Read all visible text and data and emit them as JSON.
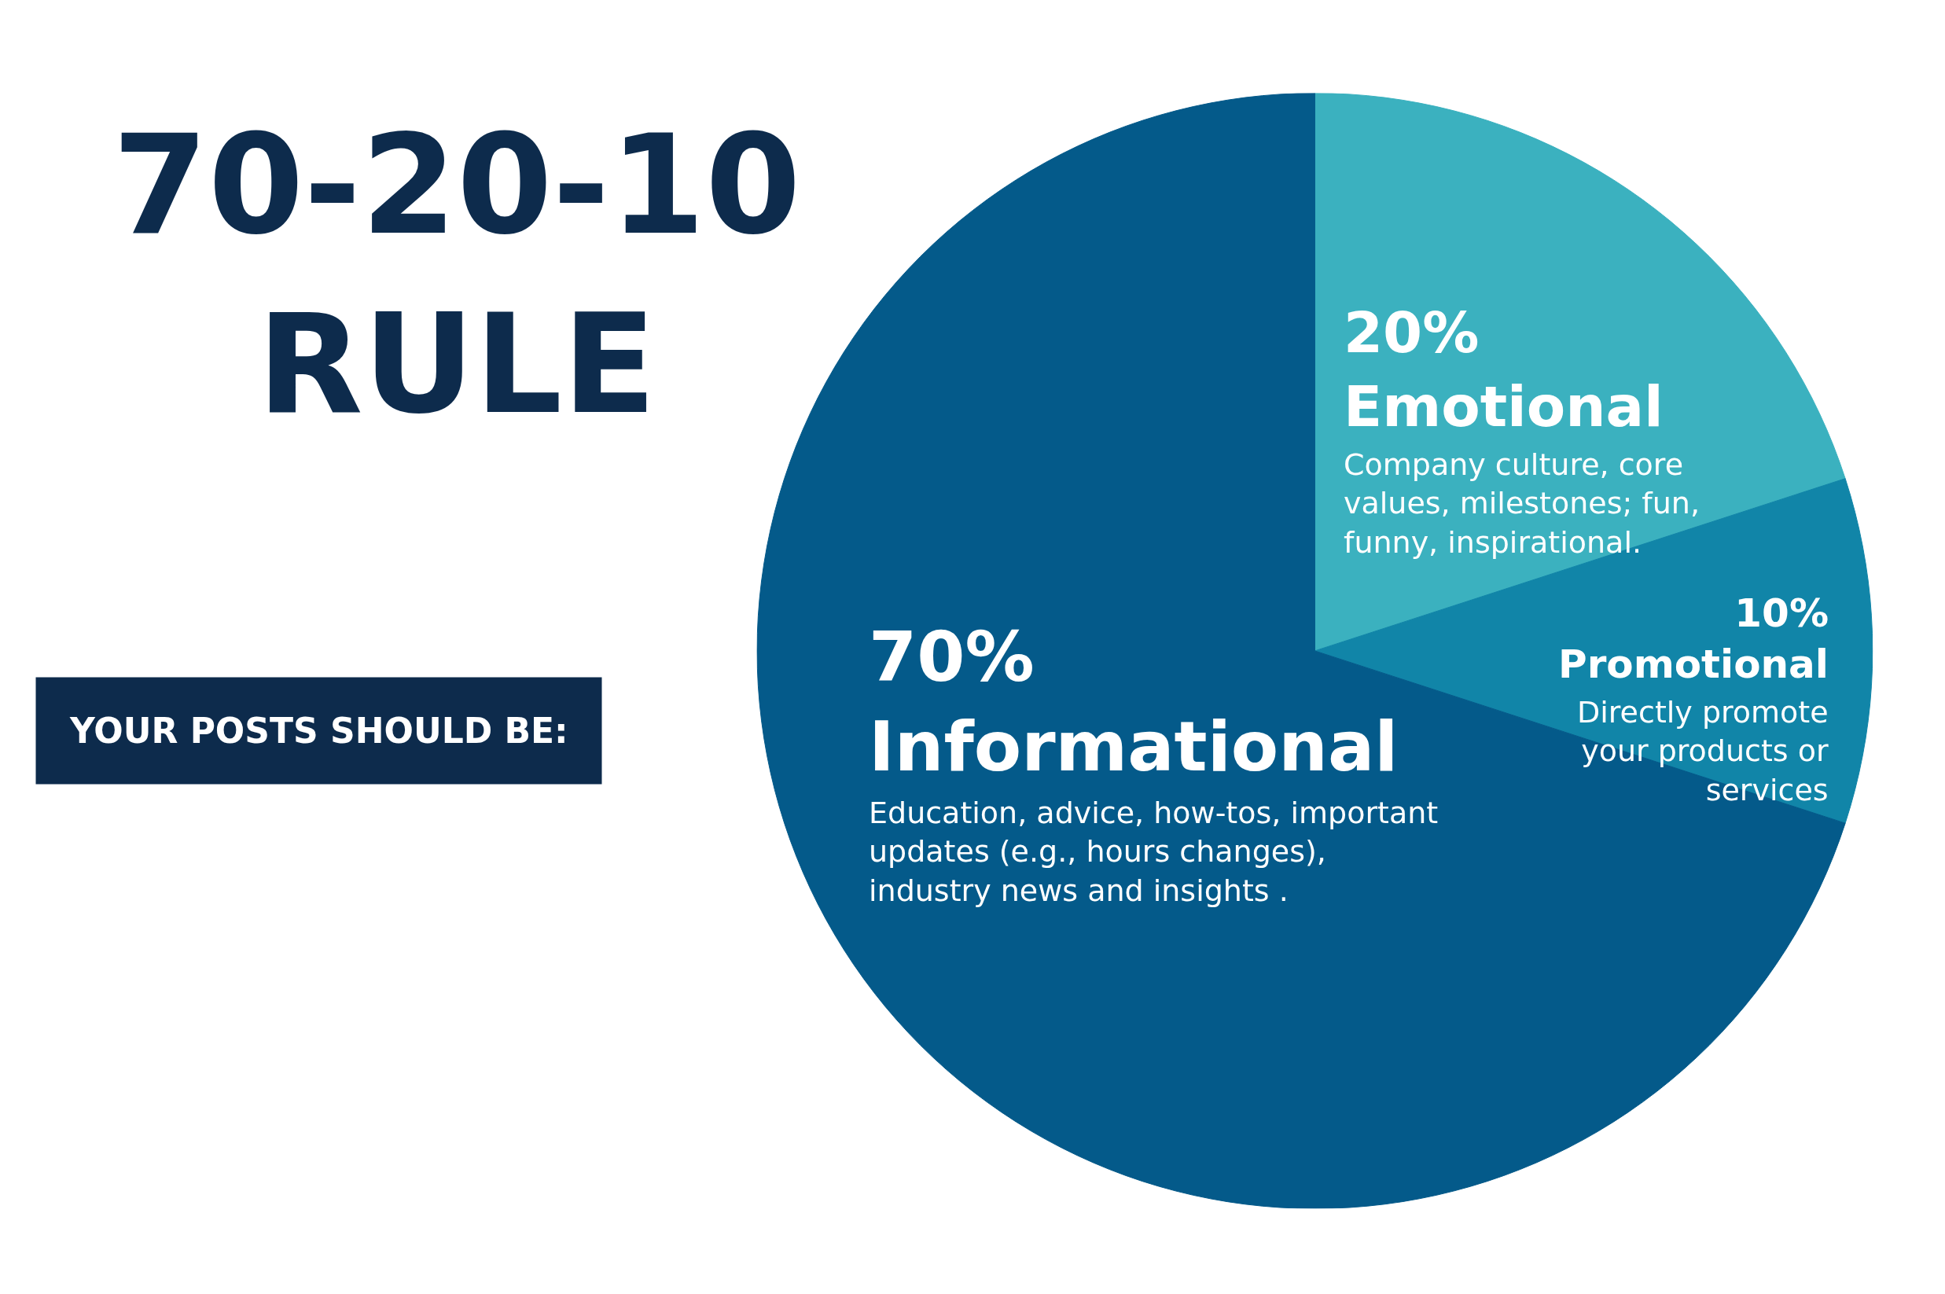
{
  "chart_data": {
    "type": "pie",
    "title": "70-20-10 RULE",
    "categories": [
      "Emotional",
      "Promotional",
      "Informational"
    ],
    "values": [
      20,
      10,
      70
    ],
    "value_labels": [
      "20%",
      "10%",
      "70%"
    ],
    "colors": [
      "#3bb1bf",
      "#1185a8",
      "#045a8a"
    ],
    "annotations": [
      "YOUR POSTS SHOULD BE:",
      "Company culture, core values, milestones; fun, funny, inspirational.",
      "Directly promote your products or services",
      "Education, advice, how-tos, important updates (e.g., hours changes), industry news and insights ."
    ]
  }
}
